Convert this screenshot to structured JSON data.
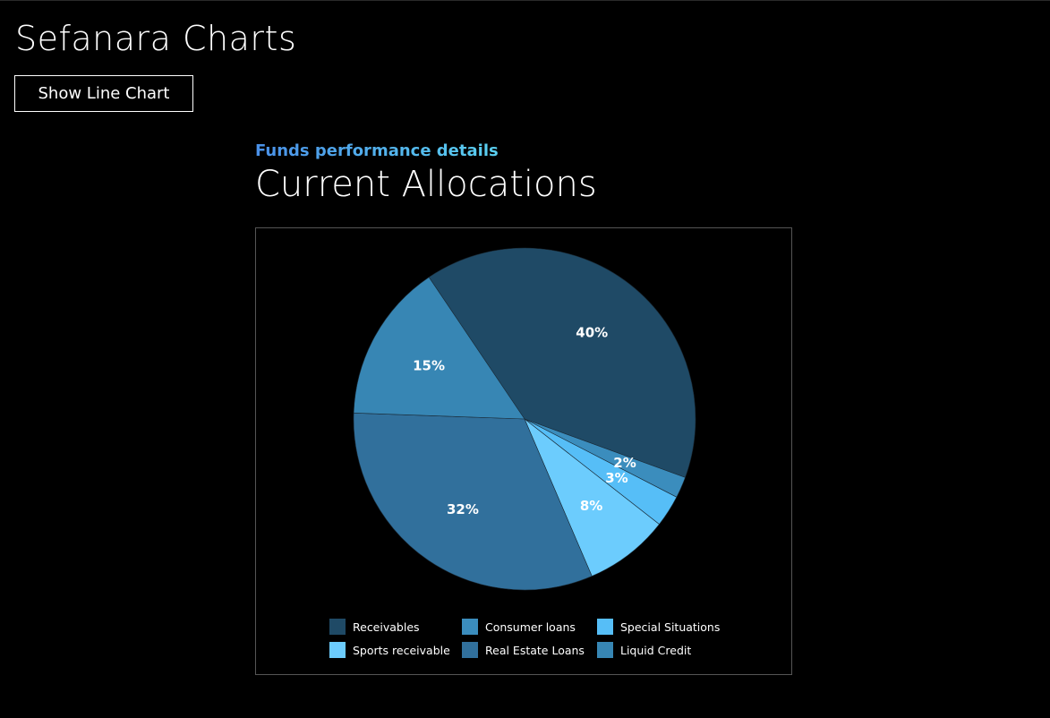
{
  "app": {
    "title": "Sefanara Charts",
    "toggle_button_label": "Show Line Chart"
  },
  "section": {
    "subtitle": "Funds performance details",
    "title": "Current Allocations"
  },
  "chart_data": {
    "type": "pie",
    "title": "Current Allocations",
    "subtitle": "Funds performance details",
    "legend_position": "bottom",
    "slices": [
      {
        "name": "Receivables",
        "value": 40,
        "label": "40%",
        "color": "#1f4a66"
      },
      {
        "name": "Consumer loans",
        "value": 2,
        "label": "2%",
        "color": "#3b8dbd"
      },
      {
        "name": "Special Situations",
        "value": 3,
        "label": "3%",
        "color": "#56bef7"
      },
      {
        "name": "Sports receivable",
        "value": 8,
        "label": "8%",
        "color": "#6cccfd"
      },
      {
        "name": "Real Estate Loans",
        "value": 32,
        "label": "32%",
        "color": "#31709c"
      },
      {
        "name": "Liquid Credit",
        "value": 15,
        "label": "15%",
        "color": "#3786b4"
      }
    ],
    "legend": [
      {
        "name": "Receivables",
        "color": "#1f4a66"
      },
      {
        "name": "Consumer loans",
        "color": "#3b8dbd"
      },
      {
        "name": "Special Situations",
        "color": "#56bef7"
      },
      {
        "name": "Sports receivable",
        "color": "#6cccfd"
      },
      {
        "name": "Real Estate Loans",
        "color": "#31709c"
      },
      {
        "name": "Liquid Credit",
        "color": "#3786b4"
      }
    ]
  }
}
